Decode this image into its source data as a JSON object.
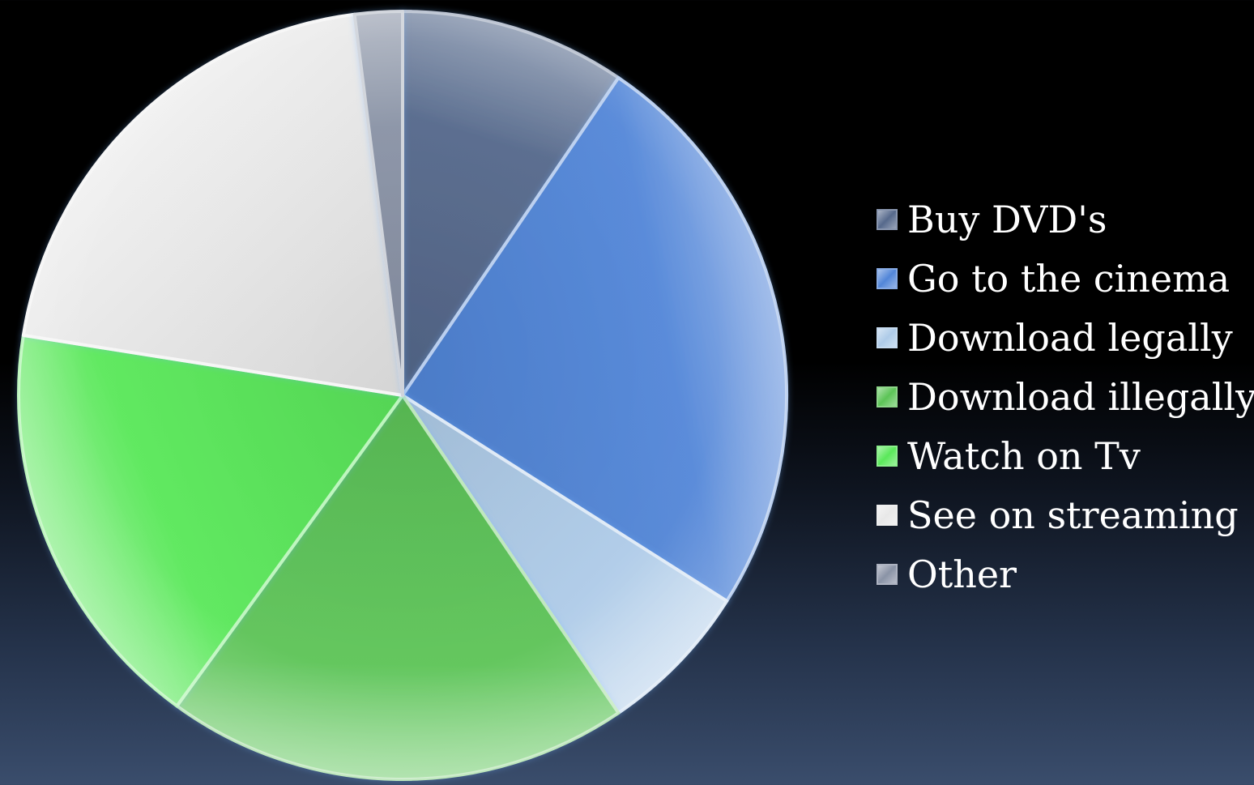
{
  "chart_data": {
    "type": "pie",
    "title": "",
    "legend_position": "right",
    "categories": [
      "Buy DVD's",
      "Go to the cinema",
      "Download legally",
      "Download illegally",
      "Watch on Tv",
      "See on streaming",
      "Other"
    ],
    "values": [
      9.5,
      24.5,
      6.5,
      19.5,
      17.5,
      20.5,
      2.0
    ],
    "colors": [
      "#56698c",
      "#5286d8",
      "#aecbe8",
      "#5cc457",
      "#5ae85a",
      "#e8e8e8",
      "#8a93a6"
    ]
  }
}
